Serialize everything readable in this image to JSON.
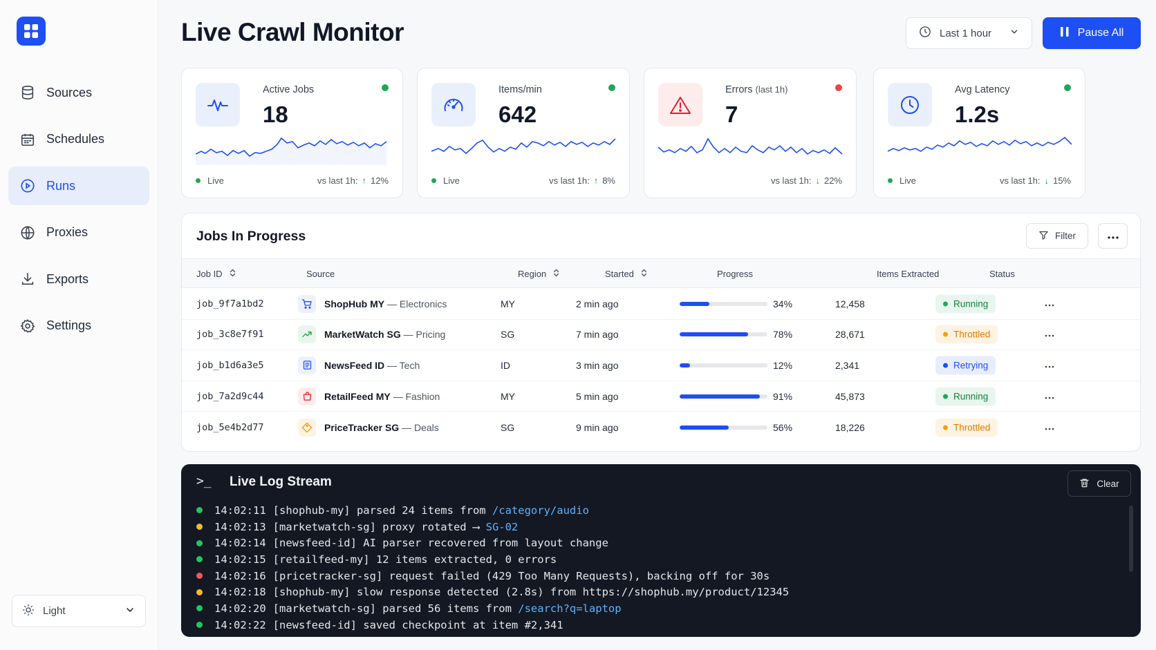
{
  "sidebar": {
    "items": [
      {
        "label": "Sources",
        "icon": "database-icon",
        "active": false
      },
      {
        "label": "Schedules",
        "icon": "calendar-icon",
        "active": false
      },
      {
        "label": "Runs",
        "icon": "play-circle-icon",
        "active": true
      },
      {
        "label": "Proxies",
        "icon": "globe-icon",
        "active": false
      },
      {
        "label": "Exports",
        "icon": "download-icon",
        "active": false
      },
      {
        "label": "Settings",
        "icon": "gear-icon",
        "active": false
      }
    ],
    "theme_label": "Light"
  },
  "header": {
    "title": "Live Crawl Monitor",
    "range_label": "Last 1 hour",
    "pause_label": "Pause All"
  },
  "colors": {
    "accent": "#1d4ff5",
    "green": "#22a55a",
    "red": "#ef4444",
    "orange": "#f59e0b",
    "log_bg": "#131822"
  },
  "stats": [
    {
      "label": "Active Jobs",
      "sub": "",
      "value": "18",
      "status": "green",
      "live": "Live",
      "cmp_label": "vs last 1h:",
      "cmp_arrow": "↑",
      "cmp_value": "12%"
    },
    {
      "label": "Items/min",
      "sub": "",
      "value": "642",
      "status": "green",
      "live": "Live",
      "cmp_label": "vs last 1h:",
      "cmp_arrow": "↑",
      "cmp_value": "8%"
    },
    {
      "label": "Errors",
      "sub": "(last 1h)",
      "value": "7",
      "status": "red",
      "live": "",
      "cmp_label": "vs last 1h:",
      "cmp_arrow": "↓",
      "cmp_value": "22%"
    },
    {
      "label": "Avg Latency",
      "sub": "",
      "value": "1.2s",
      "status": "green",
      "live": "Live",
      "cmp_label": "vs last 1h:",
      "cmp_arrow": "↓",
      "cmp_value": "15%"
    }
  ],
  "jobs": {
    "title": "Jobs In Progress",
    "filter_label": "Filter",
    "columns": [
      "Job ID",
      "Source",
      "Region",
      "Started",
      "Progress",
      "Items Extracted",
      "Status"
    ],
    "rows": [
      {
        "id": "job_9f7a1bd2",
        "source": "ShopHub MY",
        "category": "— Electronics",
        "icon": "cart-icon",
        "region": "MY",
        "started": "2 min ago",
        "progress": 34,
        "progress_label": "34%",
        "items": "12,458",
        "status": "Running"
      },
      {
        "id": "job_3c8e7f91",
        "source": "MarketWatch SG",
        "category": "— Pricing",
        "icon": "trend-up-icon",
        "region": "SG",
        "started": "7 min ago",
        "progress": 78,
        "progress_label": "78%",
        "items": "28,671",
        "status": "Throttled"
      },
      {
        "id": "job_b1d6a3e5",
        "source": "NewsFeed ID",
        "category": "— Tech",
        "icon": "newspaper-icon",
        "region": "ID",
        "started": "3 min ago",
        "progress": 12,
        "progress_label": "12%",
        "items": "2,341",
        "status": "Retrying"
      },
      {
        "id": "job_7a2d9c44",
        "source": "RetailFeed MY",
        "category": "— Fashion",
        "icon": "bag-icon",
        "region": "MY",
        "started": "5 min ago",
        "progress": 91,
        "progress_label": "91%",
        "items": "45,873",
        "status": "Running"
      },
      {
        "id": "job_5e4b2d77",
        "source": "PriceTracker SG",
        "category": "— Deals",
        "icon": "tag-icon",
        "region": "SG",
        "started": "9 min ago",
        "progress": 56,
        "progress_label": "56%",
        "items": "18,226",
        "status": "Throttled"
      }
    ]
  },
  "log": {
    "prompt": ">_",
    "title": "Live Log Stream",
    "clear_label": "Clear",
    "lines": [
      {
        "level": "green",
        "time": "14:02:11",
        "text": "[shophub-my] parsed 24 items from ",
        "highlight": "/category/audio"
      },
      {
        "level": "orange",
        "time": "14:02:13",
        "text": "[marketwatch-sg] proxy rotated ⟶ ",
        "highlight": "SG-02"
      },
      {
        "level": "green",
        "time": "14:02:14",
        "text": "[newsfeed-id] AI parser recovered from layout change",
        "highlight": ""
      },
      {
        "level": "green",
        "time": "14:02:15",
        "text": "[retailfeed-my] 12 items extracted, 0 errors",
        "highlight": ""
      },
      {
        "level": "red",
        "time": "14:02:16",
        "text": "[pricetracker-sg] request failed (429 Too Many Requests), backing off for 30s",
        "highlight": ""
      },
      {
        "level": "orange",
        "time": "14:02:18",
        "text": "[shophub-my] slow response detected (2.8s) from https://shophub.my/product/12345",
        "highlight": ""
      },
      {
        "level": "green",
        "time": "14:02:20",
        "text": "[marketwatch-sg] parsed 56 items from ",
        "highlight": "/search?q=laptop"
      },
      {
        "level": "green",
        "time": "14:02:22",
        "text": "[newsfeed-id] saved checkpoint at item #2,341",
        "highlight": ""
      }
    ]
  }
}
